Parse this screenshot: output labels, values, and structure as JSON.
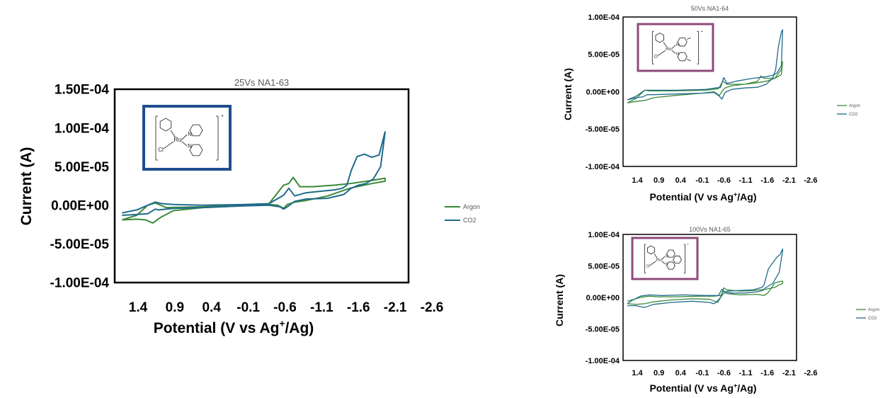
{
  "colors": {
    "argon": "#3a8a3a",
    "co2": "#1f6b8c",
    "frame_blue": "#1f4e8f",
    "frame_purple": "#8e4a7a"
  },
  "chart_data": [
    {
      "id": "main",
      "type": "line",
      "title": "25Vs NA1-63",
      "xlabel": "Potential (V vs Ag",
      "xlabel_sup": "+",
      "xlabel_tail": "/Ag)",
      "ylabel": "Current (A)",
      "x_ticks": [
        "1.4",
        "0.9",
        "0.4",
        "-0.1",
        "-0.6",
        "-1.1",
        "-1.6",
        "-2.1",
        "-2.6"
      ],
      "y_ticks": [
        "1.50E-04",
        "1.00E-04",
        "5.00E-05",
        "0.00E+00",
        "-5.00E-05",
        "-1.00E-04"
      ],
      "xlim": [
        1.4,
        -2.6
      ],
      "ylim": [
        -0.0001,
        0.00015
      ],
      "legend_position": "right",
      "inset_frame": "frame_blue",
      "inset_ligand": "bpy",
      "series": [
        {
          "name": "Argon",
          "color": "argon",
          "x": [
            1.3,
            1.1,
            0.98,
            0.88,
            0.78,
            0.6,
            0.2,
            -0.3,
            -0.7,
            -0.82,
            -0.9,
            -0.95,
            -1.05,
            -1.2,
            -1.5,
            -1.8,
            -2.1,
            -2.28,
            -2.28,
            -2.1,
            -1.8,
            -1.6,
            -1.3,
            -1.12,
            -1.03,
            -0.97,
            -0.9,
            -0.7,
            -0.4,
            0.2,
            0.7,
            0.85,
            0.95,
            1.1,
            1.3
          ],
          "y": [
            -1.9e-05,
            -1.8e-05,
            -1.9e-05,
            -2.3e-05,
            -1.6e-05,
            -7e-06,
            -3e-06,
            -1e-06,
            1e-06,
            0,
            -4e-06,
            1e-06,
            4e-06,
            6e-06,
            1.2e-05,
            2.2e-05,
            2.8e-05,
            3.1e-05,
            3.5e-05,
            3.2e-05,
            2.8e-05,
            2.6e-05,
            2.4e-05,
            2.4e-05,
            3.6e-05,
            2.8e-05,
            2.6e-05,
            2e-06,
            1e-06,
            -2e-06,
            -3e-06,
            3e-06,
            0,
            -1.3e-05,
            -1.9e-05
          ]
        },
        {
          "name": "CO2",
          "color": "co2",
          "x": [
            1.3,
            1.1,
            0.95,
            0.85,
            0.8,
            0.6,
            0.2,
            -0.3,
            -0.7,
            -0.85,
            -0.9,
            -0.95,
            -1.05,
            -1.2,
            -1.5,
            -1.72,
            -1.82,
            -1.92,
            -2.02,
            -2.12,
            -2.22,
            -2.28,
            -2.28,
            -2.2,
            -2.1,
            -2.0,
            -1.9,
            -1.82,
            -1.76,
            -1.7,
            -1.6,
            -1.4,
            -1.2,
            -1.05,
            -0.97,
            -0.9,
            -0.7,
            -0.4,
            0.2,
            0.6,
            0.75,
            0.85,
            0.95,
            1.1,
            1.3
          ],
          "y": [
            -1.3e-05,
            -1.2e-05,
            -1.1e-05,
            -5e-06,
            -6e-06,
            -4e-06,
            -3e-06,
            -1e-06,
            0,
            -2e-06,
            -5e-06,
            -2e-06,
            5e-06,
            8e-06,
            9e-06,
            1.4e-05,
            2.2e-05,
            2.6e-05,
            2.8e-05,
            3.4e-05,
            5e-05,
            9.4e-05,
            9.5e-05,
            6.5e-05,
            6.2e-05,
            6.6e-05,
            6.3e-05,
            4.5e-05,
            2.6e-05,
            2.2e-05,
            2e-05,
            1.8e-05,
            1.6e-05,
            1.2e-05,
            2.2e-05,
            1.3e-05,
            2e-06,
            1e-06,
            0,
            1e-06,
            2e-06,
            4e-06,
            0,
            -6e-06,
            -1e-05
          ]
        }
      ]
    },
    {
      "id": "top",
      "type": "line",
      "title": "50Vs NA1-64",
      "xlabel": "Potential (V vs Ag",
      "xlabel_sup": "+",
      "xlabel_tail": "/Ag)",
      "ylabel": "Current (A)",
      "x_ticks": [
        "1.4",
        "0.9",
        "0.4",
        "-0.1",
        "-0.6",
        "-1.1",
        "-1.6",
        "-2.1",
        "-2.6"
      ],
      "y_ticks": [
        "1.00E-04",
        "5.00E-05",
        "0.00E+00",
        "-5.00E-05",
        "-1.00E-04"
      ],
      "xlim": [
        1.4,
        -2.6
      ],
      "ylim": [
        -0.0001,
        0.0001
      ],
      "legend_position": "right",
      "inset_frame": "frame_purple",
      "inset_ligand": "dmbpy",
      "series": [
        {
          "name": "Argon",
          "color": "argon",
          "x": [
            1.3,
            1.1,
            0.95,
            0.85,
            0.7,
            0.2,
            -0.4,
            -0.7,
            -0.82,
            -0.9,
            -0.95,
            -1.1,
            -1.4,
            -1.7,
            -1.9,
            -2.1,
            -2.25,
            -2.28,
            -2.25,
            -2.1,
            -1.85,
            -1.78,
            -1.7,
            -1.4,
            -1.0,
            -0.9,
            -0.8,
            -0.5,
            0.2,
            0.8,
            0.9,
            1.1,
            1.3
          ],
          "y": [
            -1.5e-05,
            -1.3e-05,
            -1.2e-05,
            -1.1e-05,
            -8e-06,
            -5e-06,
            -2e-06,
            0,
            -5e-06,
            2e-06,
            5e-06,
            8e-06,
            1e-05,
            1.2e-05,
            1.4e-05,
            1.8e-05,
            2.3e-05,
            4e-05,
            3e-05,
            1.8e-05,
            1.8e-05,
            2.1e-05,
            1.4e-05,
            1e-05,
            1e-05,
            1.4e-05,
            4e-06,
            2e-06,
            1e-06,
            1e-06,
            2e-06,
            -9e-06,
            -1.5e-05
          ]
        },
        {
          "name": "CO2",
          "color": "co2",
          "x": [
            1.3,
            1.1,
            0.95,
            0.85,
            0.7,
            0.2,
            -0.4,
            -0.7,
            -0.82,
            -0.88,
            -0.95,
            -1.1,
            -1.4,
            -1.7,
            -1.9,
            -2.05,
            -2.12,
            -2.18,
            -2.25,
            -2.28,
            -2.25,
            -2.15,
            -2.05,
            -1.9,
            -1.6,
            -1.2,
            -1.0,
            -0.92,
            -0.85,
            -0.5,
            0.2,
            0.8,
            0.9,
            1.1,
            1.3
          ],
          "y": [
            -1.1e-05,
            -8e-06,
            -7e-06,
            -4e-06,
            -4e-06,
            -3e-06,
            -2e-06,
            -1e-06,
            -6e-06,
            -1e-05,
            -1e-06,
            3e-06,
            5e-06,
            6e-06,
            1e-05,
            1.8e-05,
            3e-05,
            6e-05,
            8e-05,
            8.3e-05,
            3.5e-05,
            2.5e-05,
            2.2e-05,
            2e-05,
            1.8e-05,
            1.4e-05,
            1.1e-05,
            1.9e-05,
            6e-06,
            3e-06,
            2e-06,
            2e-06,
            2e-06,
            -6e-06,
            -1.1e-05
          ]
        }
      ]
    },
    {
      "id": "bottom",
      "type": "line",
      "title": "100Vs NA1-65",
      "xlabel": "Potential (V vs Ag",
      "xlabel_sup": "+",
      "xlabel_tail": "/Ag)",
      "ylabel": "Current (A)",
      "x_ticks": [
        "1.4",
        "0.9",
        "0.4",
        "-0.1",
        "-0.6",
        "-1.1",
        "-1.6",
        "-2.1",
        "-2.6"
      ],
      "y_ticks": [
        "1.00E-04",
        "5.00E-05",
        "0.00E+00",
        "-5.00E-05",
        "-1.00E-04"
      ],
      "xlim": [
        1.4,
        -2.6
      ],
      "ylim": [
        -0.0001,
        0.0001
      ],
      "legend_position": "right",
      "inset_frame": "frame_purple",
      "inset_ligand": "phen",
      "series": [
        {
          "name": "Argon",
          "color": "argon",
          "x": [
            1.3,
            1.1,
            0.9,
            0.7,
            0.3,
            -0.2,
            -0.6,
            -0.78,
            -0.85,
            -0.92,
            -1.0,
            -1.3,
            -1.6,
            -1.9,
            -2.1,
            -2.2,
            -2.28,
            -2.28,
            -2.2,
            -2.1,
            -1.95,
            -1.85,
            -1.7,
            -1.3,
            -1.0,
            -0.92,
            -0.85,
            -0.7,
            -0.4,
            0.2,
            0.6,
            0.8,
            1.0,
            1.3
          ],
          "y": [
            -1e-05,
            -1.1e-05,
            -1e-05,
            -7e-06,
            -4e-06,
            -2e-06,
            -3e-06,
            -8e-06,
            0,
            1.5e-05,
            1.2e-05,
            1e-05,
            1.1e-05,
            1.3e-05,
            1.6e-05,
            2e-05,
            2.2e-05,
            2.6e-05,
            2.5e-05,
            2.3e-05,
            8e-06,
            3e-06,
            5e-06,
            4e-06,
            6e-06,
            1e-05,
            3e-06,
            2e-06,
            2e-06,
            1e-06,
            1e-06,
            2e-06,
            0,
            -6e-06
          ]
        },
        {
          "name": "CO2",
          "color": "co2",
          "x": [
            1.3,
            1.1,
            0.9,
            0.7,
            0.3,
            -0.2,
            -0.6,
            -0.7,
            -0.8,
            -0.9,
            -1.0,
            -1.3,
            -1.6,
            -1.8,
            -1.85,
            -1.95,
            -2.05,
            -2.15,
            -2.22,
            -2.28,
            -2.28,
            -2.2,
            -2.05,
            -1.95,
            -1.88,
            -1.82,
            -1.7,
            -1.4,
            -1.1,
            -0.95,
            -0.88,
            -0.8,
            -0.5,
            0.0,
            0.5,
            0.8,
            1.0,
            1.2,
            1.3
          ],
          "y": [
            -1.3e-05,
            -1.3e-05,
            -1.6e-05,
            -1.1e-05,
            -8e-06,
            -6e-06,
            -8e-06,
            -1e-05,
            -4e-06,
            5e-06,
            1e-05,
            1.1e-05,
            1.2e-05,
            1.6e-05,
            2e-05,
            4.5e-05,
            5.5e-05,
            6.4e-05,
            6.8e-05,
            7.7e-05,
            7.4e-05,
            4e-05,
            2.2e-05,
            1.8e-05,
            1.5e-05,
            1.1e-05,
            9e-06,
            7e-06,
            7e-06,
            9e-06,
            1.3e-05,
            3e-06,
            3e-06,
            4e-06,
            3e-06,
            4e-06,
            2e-06,
            -5e-06,
            -1e-05
          ]
        }
      ]
    }
  ],
  "molecule": {
    "ru": "Ru",
    "cl": "Cl",
    "n": "N",
    "charge": "+"
  }
}
